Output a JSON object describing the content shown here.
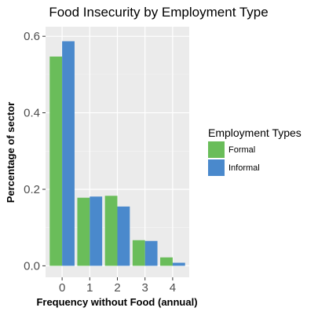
{
  "chart_data": {
    "type": "bar",
    "title": "Food Insecurity by Employment Type",
    "xlabel": "Frequency without Food (annual)",
    "ylabel": "Percentage of sector",
    "categories": [
      "0",
      "1",
      "2",
      "3",
      "4"
    ],
    "series": [
      {
        "name": "Formal",
        "color": "#6ABD5A",
        "values": [
          0.547,
          0.178,
          0.183,
          0.067,
          0.022
        ]
      },
      {
        "name": "Informal",
        "color": "#4A89CC",
        "values": [
          0.587,
          0.181,
          0.155,
          0.065,
          0.008
        ]
      }
    ],
    "ylim": [
      -0.03,
      0.625
    ],
    "yticks": [
      0.0,
      0.2,
      0.4,
      0.6
    ],
    "ytick_labels": [
      "0.0",
      "0.2",
      "0.4",
      "0.6"
    ],
    "grid": true,
    "legend_title": "Employment Types",
    "legend_position": "right"
  }
}
